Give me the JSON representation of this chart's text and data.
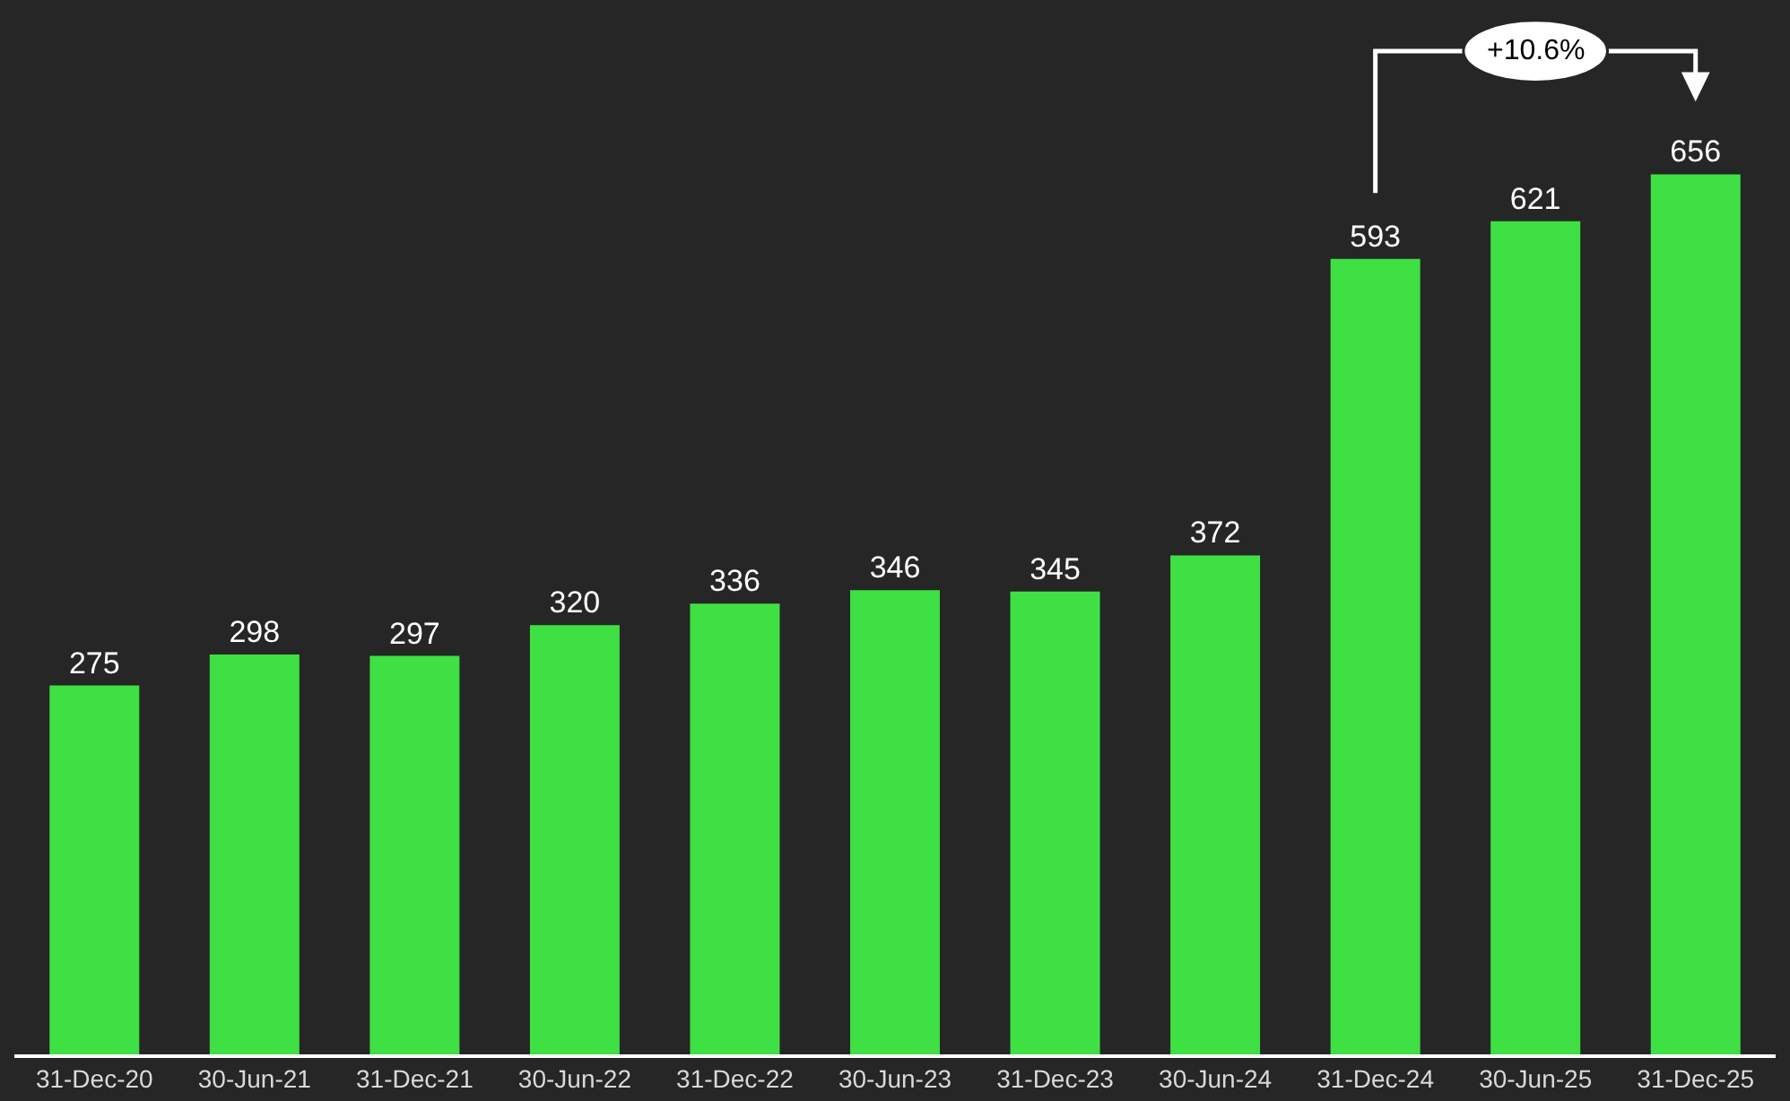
{
  "chart_data": {
    "type": "bar",
    "categories": [
      "31-Dec-20",
      "30-Jun-21",
      "31-Dec-21",
      "30-Jun-22",
      "31-Dec-22",
      "30-Jun-23",
      "31-Dec-23",
      "30-Jun-24",
      "31-Dec-24",
      "30-Jun-25",
      "31-Dec-25"
    ],
    "values": [
      275,
      298,
      297,
      320,
      336,
      346,
      345,
      372,
      593,
      621,
      656
    ],
    "color": "#3fe044",
    "data_labels": true,
    "grid": false,
    "legend": false,
    "tick_labels": "x",
    "annotations": [
      "+10.6%"
    ]
  }
}
